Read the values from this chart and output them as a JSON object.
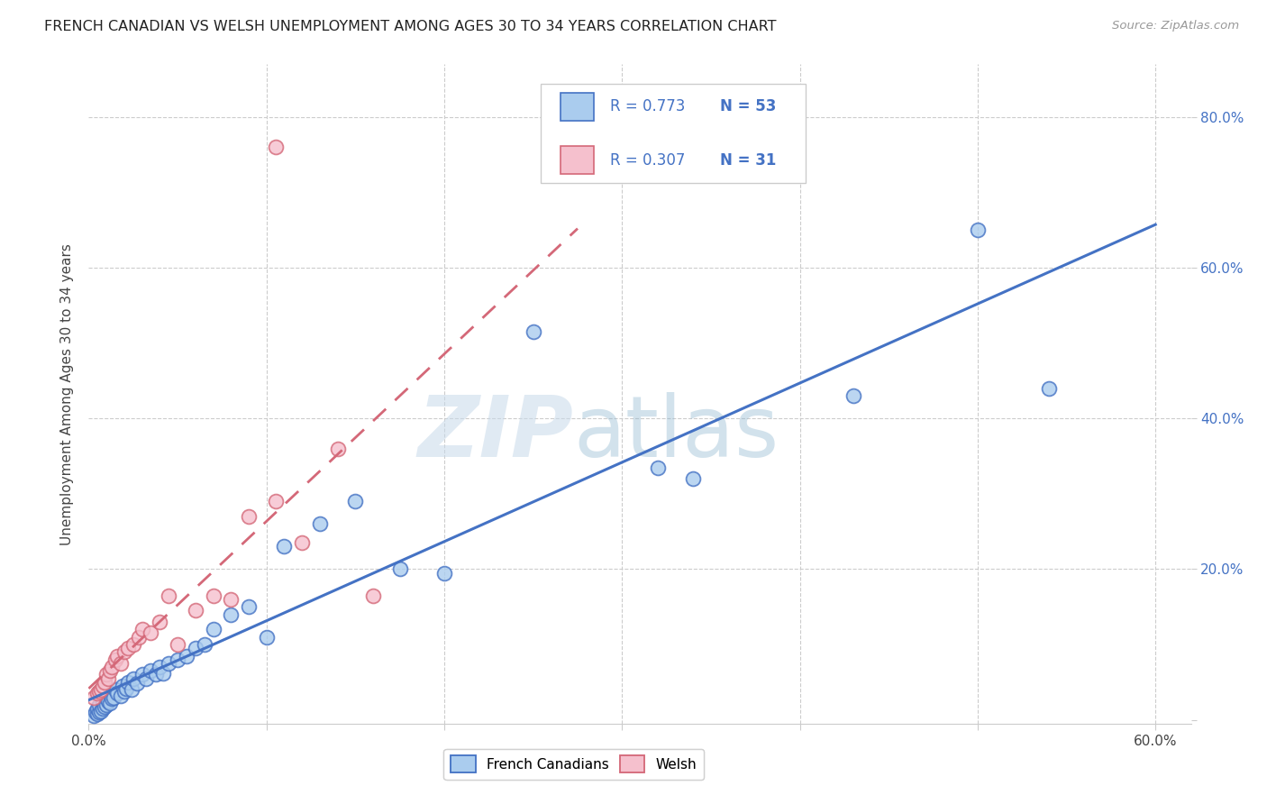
{
  "title": "FRENCH CANADIAN VS WELSH UNEMPLOYMENT AMONG AGES 30 TO 34 YEARS CORRELATION CHART",
  "source": "Source: ZipAtlas.com",
  "ylabel": "Unemployment Among Ages 30 to 34 years",
  "xlim": [
    0.0,
    0.62
  ],
  "ylim": [
    -0.005,
    0.87
  ],
  "ytick_positions": [
    0.0,
    0.2,
    0.4,
    0.6,
    0.8
  ],
  "ytick_labels_right": [
    "",
    "20.0%",
    "40.0%",
    "60.0%",
    "80.0%"
  ],
  "blue_face": "#aaccee",
  "blue_edge": "#4472c4",
  "pink_face": "#f5c0cd",
  "pink_edge": "#d46878",
  "blue_line": "#4472c4",
  "pink_line": "#d46878",
  "watermark_zip_color": "#c8d8ea",
  "watermark_atlas_color": "#90b8d8",
  "grid_color": "#cccccc",
  "right_tick_color": "#4472c4",
  "legend_r1": "R = 0.773",
  "legend_n1": "N = 53",
  "legend_r2": "R = 0.307",
  "legend_n2": "N = 31",
  "fc_x": [
    0.003,
    0.004,
    0.005,
    0.005,
    0.006,
    0.006,
    0.007,
    0.008,
    0.008,
    0.009,
    0.01,
    0.01,
    0.011,
    0.012,
    0.012,
    0.013,
    0.014,
    0.015,
    0.016,
    0.018,
    0.019,
    0.02,
    0.021,
    0.022,
    0.024,
    0.025,
    0.027,
    0.03,
    0.032,
    0.035,
    0.038,
    0.04,
    0.042,
    0.045,
    0.05,
    0.055,
    0.06,
    0.065,
    0.07,
    0.08,
    0.09,
    0.1,
    0.11,
    0.13,
    0.15,
    0.175,
    0.2,
    0.25,
    0.32,
    0.34,
    0.43,
    0.5,
    0.54
  ],
  "fc_y": [
    0.005,
    0.01,
    0.008,
    0.015,
    0.01,
    0.02,
    0.012,
    0.015,
    0.025,
    0.018,
    0.02,
    0.03,
    0.025,
    0.022,
    0.035,
    0.028,
    0.03,
    0.04,
    0.035,
    0.032,
    0.045,
    0.038,
    0.042,
    0.05,
    0.04,
    0.055,
    0.048,
    0.06,
    0.055,
    0.065,
    0.06,
    0.07,
    0.062,
    0.075,
    0.08,
    0.085,
    0.095,
    0.1,
    0.12,
    0.14,
    0.15,
    0.11,
    0.23,
    0.26,
    0.29,
    0.2,
    0.195,
    0.515,
    0.335,
    0.32,
    0.43,
    0.65,
    0.44
  ],
  "w_x": [
    0.003,
    0.005,
    0.006,
    0.007,
    0.008,
    0.009,
    0.01,
    0.011,
    0.012,
    0.013,
    0.015,
    0.016,
    0.018,
    0.02,
    0.022,
    0.025,
    0.028,
    0.03,
    0.035,
    0.04,
    0.045,
    0.05,
    0.06,
    0.07,
    0.08,
    0.09,
    0.105,
    0.12,
    0.14,
    0.16,
    0.105
  ],
  "w_y": [
    0.03,
    0.035,
    0.038,
    0.04,
    0.045,
    0.05,
    0.06,
    0.055,
    0.065,
    0.07,
    0.08,
    0.085,
    0.075,
    0.09,
    0.095,
    0.1,
    0.11,
    0.12,
    0.115,
    0.13,
    0.165,
    0.1,
    0.145,
    0.165,
    0.16,
    0.27,
    0.29,
    0.235,
    0.36,
    0.165,
    0.76
  ]
}
